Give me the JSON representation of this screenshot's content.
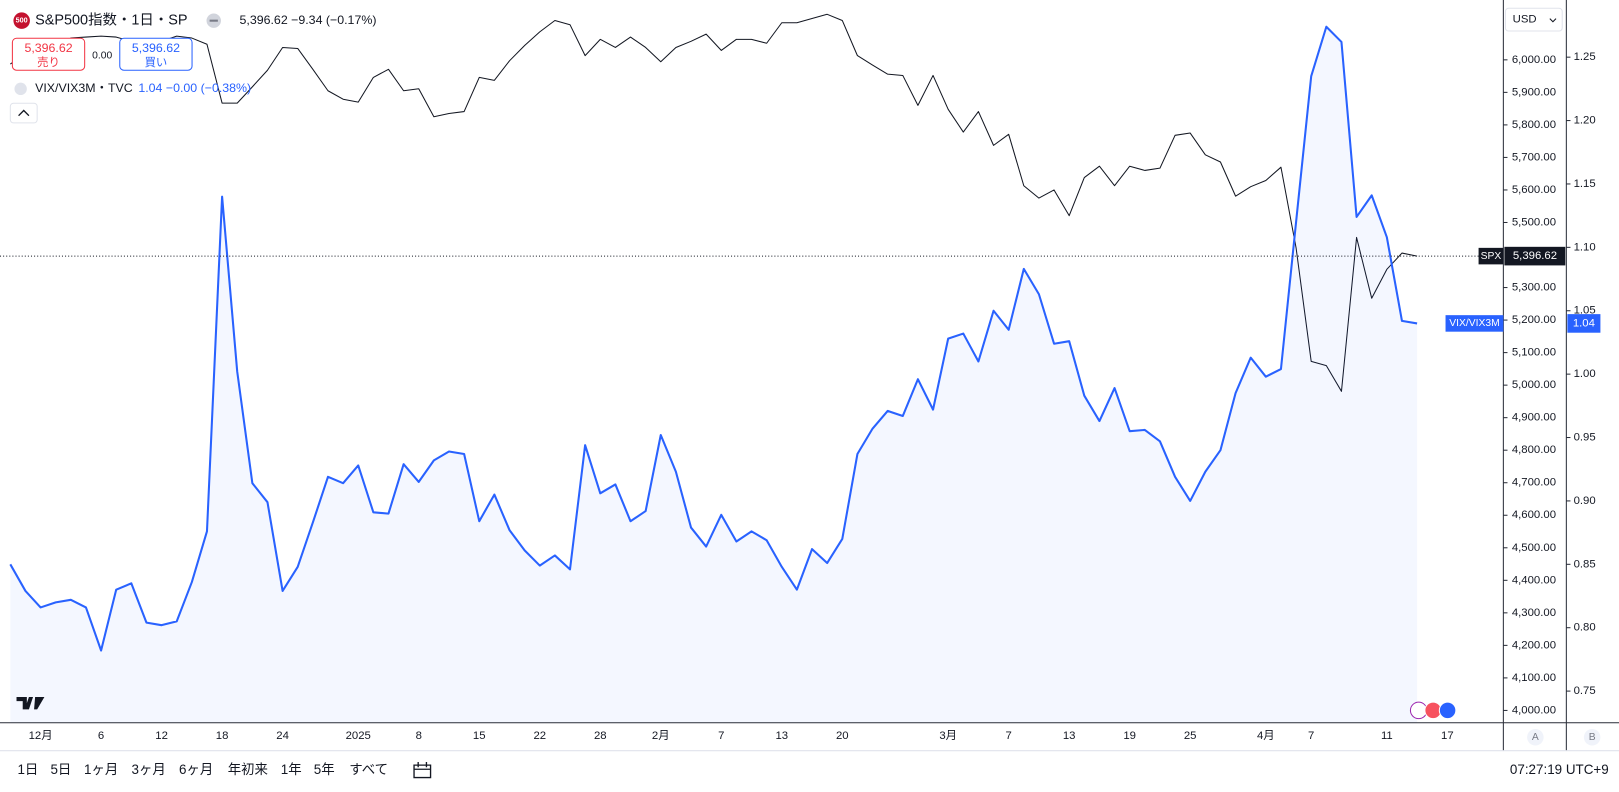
{
  "chart_data": {
    "type": "line",
    "symbol_badge": "500",
    "symbol_title": "S&P500指数・1日・SP",
    "quote": "5,396.62 −9.34 (−0.17%)",
    "sell_price": "5,396.62",
    "sell_label": "売り",
    "spread": "0.00",
    "buy_price": "5,396.62",
    "buy_label": "買い",
    "compare_title": "VIX/VIX3M・TVC",
    "compare_quote": "1.04 −0.00 (−0.38%)",
    "currency": "USD",
    "scale_buttons": [
      "A",
      "B"
    ],
    "time_ranges": [
      "1日",
      "5日",
      "1ヶ月",
      "3ヶ月",
      "6ヶ月",
      "年初来",
      "1年",
      "5年",
      "すべて"
    ],
    "clock": "07:27:19 UTC+9",
    "categories": [
      null,
      null,
      "12月",
      null,
      null,
      null,
      "6",
      null,
      null,
      null,
      "12",
      null,
      null,
      null,
      "18",
      null,
      null,
      null,
      "24",
      null,
      null,
      null,
      null,
      "2025",
      null,
      null,
      null,
      "8",
      null,
      null,
      null,
      "15",
      null,
      null,
      null,
      "22",
      null,
      null,
      null,
      "28",
      null,
      null,
      null,
      "2月",
      null,
      null,
      null,
      "7",
      null,
      null,
      null,
      "13",
      null,
      null,
      null,
      "20",
      null,
      null,
      null,
      null,
      null,
      null,
      "3月",
      null,
      null,
      null,
      "7",
      null,
      null,
      null,
      "13",
      null,
      null,
      null,
      "19",
      null,
      null,
      null,
      "25",
      null,
      null,
      null,
      null,
      "4月",
      null,
      null,
      "7",
      null,
      null,
      null,
      null,
      "11",
      null,
      null,
      null,
      "17"
    ],
    "series": [
      {
        "name": "SPX",
        "color": "#131722",
        "axis": "y",
        "area": false,
        "last_label": "5,396.62",
        "values": [
          5987,
          6019,
          6025,
          6041,
          6067,
          6070,
          6073,
          6070,
          6057,
          6035,
          6057,
          6073,
          6067,
          6048,
          5867,
          5867,
          5917,
          5968,
          6038,
          6035,
          5971,
          5905,
          5879,
          5870,
          5946,
          5971,
          5905,
          5911,
          5825,
          5835,
          5841,
          5946,
          5937,
          5997,
          6044,
          6086,
          6121,
          6108,
          6013,
          6063,
          6038,
          6070,
          6038,
          5994,
          6038,
          6057,
          6079,
          6029,
          6063,
          6063,
          6051,
          6114,
          6114,
          6127,
          6140,
          6121,
          6013,
          5984,
          5956,
          5952,
          5860,
          5952,
          5848,
          5778,
          5841,
          5737,
          5771,
          5613,
          5575,
          5600,
          5521,
          5638,
          5673,
          5613,
          5673,
          5660,
          5667,
          5768,
          5775,
          5708,
          5686,
          5581,
          5610,
          5629,
          5670,
          5422,
          5073,
          5060,
          4981,
          5454,
          5267,
          5356,
          5406,
          5396.62,
          null,
          null
        ]
      },
      {
        "name": "VIX/VIX3M",
        "color": "#2962ff",
        "axis": "y2",
        "area": true,
        "last_label": "1.04",
        "values": [
          0.85,
          0.829,
          0.816,
          0.82,
          0.822,
          0.816,
          0.782,
          0.83,
          0.835,
          0.804,
          0.802,
          0.805,
          0.836,
          0.876,
          1.14,
          1.002,
          0.914,
          0.899,
          0.829,
          0.848,
          0.883,
          0.919,
          0.914,
          0.928,
          0.891,
          0.89,
          0.929,
          0.915,
          0.932,
          0.939,
          0.937,
          0.884,
          0.905,
          0.877,
          0.861,
          0.849,
          0.857,
          0.846,
          0.944,
          0.906,
          0.913,
          0.884,
          0.892,
          0.952,
          0.923,
          0.879,
          0.864,
          0.889,
          0.868,
          0.876,
          0.869,
          0.848,
          0.83,
          0.862,
          0.851,
          0.87,
          0.937,
          0.957,
          0.971,
          0.967,
          0.996,
          0.972,
          1.028,
          1.032,
          1.01,
          1.05,
          1.035,
          1.083,
          1.063,
          1.024,
          1.026,
          0.983,
          0.963,
          0.989,
          0.955,
          0.956,
          0.947,
          0.919,
          0.9,
          0.923,
          0.94,
          0.985,
          1.013,
          0.998,
          1.004,
          1.12,
          1.235,
          1.274,
          1.262,
          1.124,
          1.141,
          1.108,
          1.042,
          1.04,
          null,
          null
        ]
      }
    ],
    "ylim": [
      3962,
      6168
    ],
    "yticks": [
      {
        "value": 4000,
        "label": "4,000.00"
      },
      {
        "value": 4100,
        "label": "4,100.00"
      },
      {
        "value": 4200,
        "label": "4,200.00"
      },
      {
        "value": 4300,
        "label": "4,300.00"
      },
      {
        "value": 4400,
        "label": "4,400.00"
      },
      {
        "value": 4500,
        "label": "4,500.00"
      },
      {
        "value": 4600,
        "label": "4,600.00"
      },
      {
        "value": 4700,
        "label": "4,700.00"
      },
      {
        "value": 4800,
        "label": "4,800.00"
      },
      {
        "value": 4900,
        "label": "4,900.00"
      },
      {
        "value": 5000,
        "label": "5,000.00"
      },
      {
        "value": 5100,
        "label": "5,100.00"
      },
      {
        "value": 5200,
        "label": "5,200.00"
      },
      {
        "value": 5300,
        "label": "5,300.00"
      },
      {
        "value": 5500,
        "label": "5,500.00"
      },
      {
        "value": 5600,
        "label": "5,600.00"
      },
      {
        "value": 5700,
        "label": "5,700.00"
      },
      {
        "value": 5800,
        "label": "5,800.00"
      },
      {
        "value": 5900,
        "label": "5,900.00"
      },
      {
        "value": 6000,
        "label": "6,000.00"
      }
    ],
    "y2lim": [
      0.725,
      1.291
    ],
    "y2ticks": [
      0.75,
      {
        "value": 0.8,
        "label": "0.80"
      },
      0.85,
      {
        "value": 0.9,
        "label": "0.90"
      },
      0.95,
      {
        "value": 1.0,
        "label": "1.00"
      },
      1.05,
      {
        "value": 1.1,
        "label": "1.10"
      },
      1.15,
      {
        "value": 1.2,
        "label": "1.20"
      },
      1.25
    ]
  }
}
